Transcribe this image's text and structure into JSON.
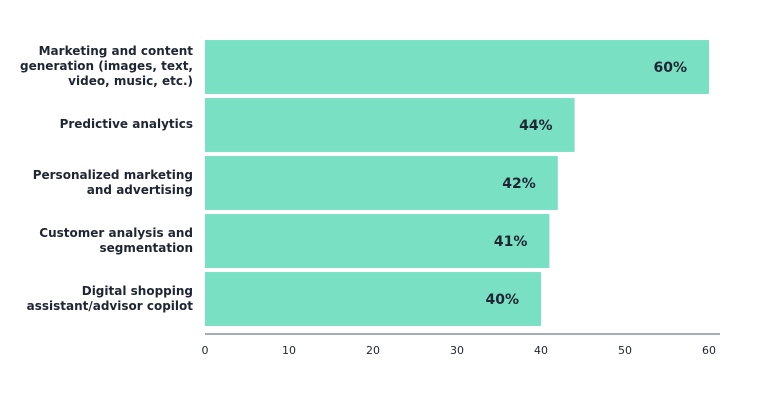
{
  "chart_data": {
    "type": "bar",
    "orientation": "horizontal",
    "categories": [
      "Marketing and content generation (images, text, video, music, etc.)",
      "Predictive analytics",
      "Personalized marketing and advertising",
      "Customer analysis and segmentation",
      "Digital shopping assistant/advisor copilot"
    ],
    "values": [
      60,
      44,
      42,
      41,
      40
    ],
    "value_labels": [
      "60%",
      "44%",
      "42%",
      "41%",
      "40%"
    ],
    "color": "#7ae0c3",
    "xlim": [
      0,
      60
    ],
    "xticks": [
      0,
      10,
      20,
      30,
      40,
      50,
      60
    ]
  }
}
